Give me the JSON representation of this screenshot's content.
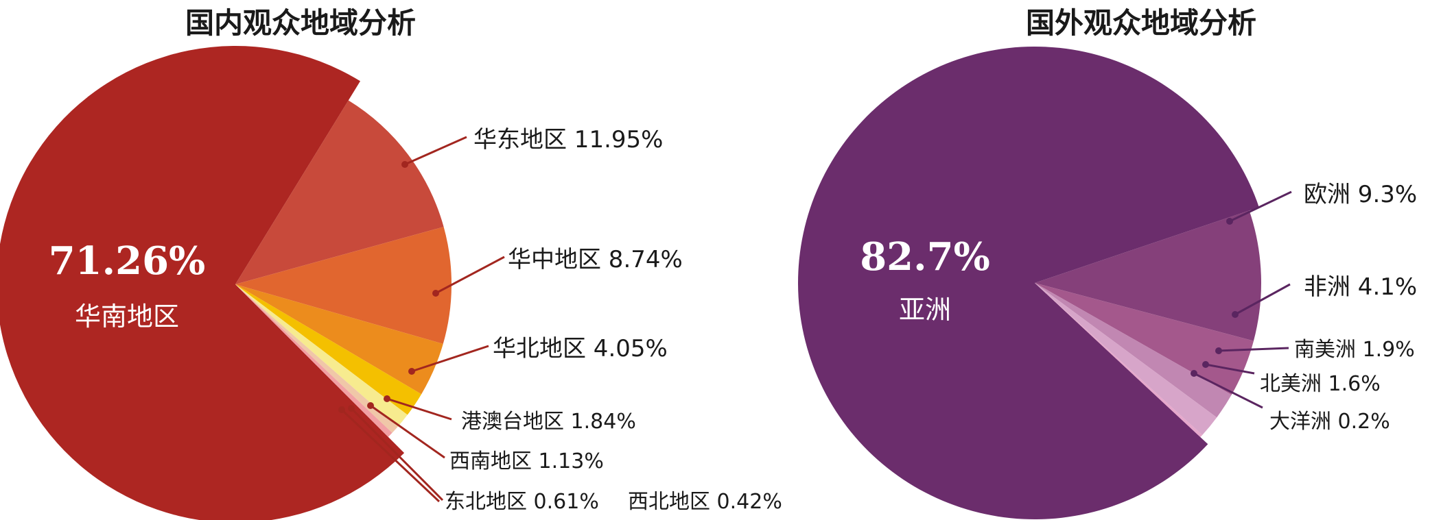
{
  "chart_data": [
    {
      "type": "pie",
      "title": "国内观众地域分析",
      "colors": [
        "#ad2622",
        "#c84a3b",
        "#e1662f",
        "#ec8c1d",
        "#f4c000",
        "#f7eb8f",
        "#f0c7a8",
        "#f2a0a4"
      ],
      "slices": [
        {
          "label": "华南地区",
          "value": 71.26,
          "text": "71.26%"
        },
        {
          "label": "华东地区",
          "value": 11.95,
          "text": "11.95%"
        },
        {
          "label": "华中地区",
          "value": 8.74,
          "text": "8.74%"
        },
        {
          "label": "华北地区",
          "value": 4.05,
          "text": "4.05%"
        },
        {
          "label": "港澳台地区",
          "value": 1.84,
          "text": "1.84%"
        },
        {
          "label": "西南地区",
          "value": 1.13,
          "text": "1.13%"
        },
        {
          "label": "东北地区",
          "value": 0.61,
          "text": "0.61%"
        },
        {
          "label": "西北地区",
          "value": 0.42,
          "text": "0.42%"
        }
      ]
    },
    {
      "type": "pie",
      "title": "国外观众地域分析",
      "colors": [
        "#6b2d6c",
        "#85407a",
        "#a4588c",
        "#c187b2",
        "#d7a5c9",
        "#e6a7cb"
      ],
      "slices": [
        {
          "label": "亚洲",
          "value": 82.7,
          "text": "82.7%"
        },
        {
          "label": "欧洲",
          "value": 9.3,
          "text": "9.3%"
        },
        {
          "label": "非洲",
          "value": 4.1,
          "text": "4.1%"
        },
        {
          "label": "南美洲",
          "value": 1.9,
          "text": "1.9%"
        },
        {
          "label": "北美洲",
          "value": 1.6,
          "text": "1.6%"
        },
        {
          "label": "大洋洲",
          "value": 0.2,
          "text": "0.2%"
        }
      ]
    }
  ]
}
